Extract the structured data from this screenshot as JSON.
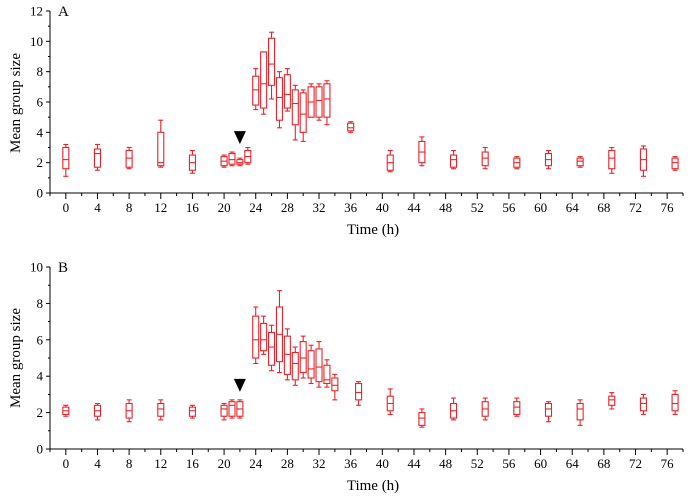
{
  "chart_data": [
    {
      "type": "box",
      "panel_label": "A",
      "xlabel": "Time (h)",
      "ylabel": "Mean group size",
      "xlim": [
        -2,
        78
      ],
      "ylim": [
        0,
        12
      ],
      "xticks": [
        0,
        4,
        8,
        12,
        16,
        20,
        24,
        28,
        32,
        36,
        40,
        44,
        48,
        52,
        56,
        60,
        64,
        68,
        72,
        76
      ],
      "yticks": [
        0,
        2,
        4,
        6,
        8,
        10,
        12
      ],
      "marker_time": 22,
      "color": "#e8242a",
      "boxes": [
        {
          "x": 0,
          "min": 1.1,
          "q1": 1.6,
          "median": 2.2,
          "q3": 3.0,
          "max": 3.2
        },
        {
          "x": 4,
          "min": 1.5,
          "q1": 1.7,
          "median": 2.6,
          "q3": 2.9,
          "max": 3.2
        },
        {
          "x": 8,
          "min": 1.6,
          "q1": 1.7,
          "median": 2.3,
          "q3": 2.8,
          "max": 3.0
        },
        {
          "x": 12,
          "min": 1.7,
          "q1": 1.8,
          "median": 2.0,
          "q3": 4.0,
          "max": 4.8
        },
        {
          "x": 16,
          "min": 1.3,
          "q1": 1.5,
          "median": 2.0,
          "q3": 2.5,
          "max": 2.8
        },
        {
          "x": 20,
          "min": 1.7,
          "q1": 1.8,
          "median": 2.1,
          "q3": 2.4,
          "max": 2.5
        },
        {
          "x": 21,
          "min": 1.8,
          "q1": 1.9,
          "median": 2.2,
          "q3": 2.6,
          "max": 2.7
        },
        {
          "x": 22,
          "min": 1.8,
          "q1": 1.9,
          "median": 2.0,
          "q3": 2.2,
          "max": 2.3
        },
        {
          "x": 23,
          "min": 1.9,
          "q1": 2.0,
          "median": 2.4,
          "q3": 2.8,
          "max": 3.0
        },
        {
          "x": 24,
          "min": 5.5,
          "q1": 5.8,
          "median": 6.8,
          "q3": 7.7,
          "max": 8.2
        },
        {
          "x": 25,
          "min": 5.2,
          "q1": 5.6,
          "median": 7.2,
          "q3": 9.3,
          "max": 9.3
        },
        {
          "x": 26,
          "min": 6.2,
          "q1": 7.1,
          "median": 8.5,
          "q3": 10.2,
          "max": 10.6
        },
        {
          "x": 27,
          "min": 4.3,
          "q1": 4.8,
          "median": 6.3,
          "q3": 7.6,
          "max": 8.0
        },
        {
          "x": 28,
          "min": 5.4,
          "q1": 5.6,
          "median": 6.5,
          "q3": 7.8,
          "max": 8.2
        },
        {
          "x": 29,
          "min": 3.5,
          "q1": 4.5,
          "median": 5.9,
          "q3": 6.8,
          "max": 7.1
        },
        {
          "x": 30,
          "min": 3.4,
          "q1": 4.0,
          "median": 5.2,
          "q3": 6.6,
          "max": 6.8
        },
        {
          "x": 31,
          "min": 5.0,
          "q1": 5.0,
          "median": 6.0,
          "q3": 7.0,
          "max": 7.2
        },
        {
          "x": 32,
          "min": 4.8,
          "q1": 5.0,
          "median": 6.1,
          "q3": 7.0,
          "max": 7.2
        },
        {
          "x": 33,
          "min": 4.5,
          "q1": 5.0,
          "median": 6.2,
          "q3": 7.2,
          "max": 7.4
        },
        {
          "x": 36,
          "min": 4.0,
          "q1": 4.1,
          "median": 4.3,
          "q3": 4.6,
          "max": 4.7
        },
        {
          "x": 41,
          "min": 1.4,
          "q1": 1.5,
          "median": 2.0,
          "q3": 2.5,
          "max": 2.8
        },
        {
          "x": 45,
          "min": 1.8,
          "q1": 2.0,
          "median": 2.7,
          "q3": 3.4,
          "max": 3.7
        },
        {
          "x": 49,
          "min": 1.6,
          "q1": 1.7,
          "median": 2.2,
          "q3": 2.5,
          "max": 2.8
        },
        {
          "x": 53,
          "min": 1.6,
          "q1": 1.8,
          "median": 2.3,
          "q3": 2.7,
          "max": 3.0
        },
        {
          "x": 57,
          "min": 1.6,
          "q1": 1.7,
          "median": 2.0,
          "q3": 2.3,
          "max": 2.4
        },
        {
          "x": 61,
          "min": 1.6,
          "q1": 1.8,
          "median": 2.2,
          "q3": 2.6,
          "max": 2.8
        },
        {
          "x": 65,
          "min": 1.7,
          "q1": 1.8,
          "median": 2.1,
          "q3": 2.3,
          "max": 2.4
        },
        {
          "x": 69,
          "min": 1.3,
          "q1": 1.6,
          "median": 2.3,
          "q3": 2.8,
          "max": 3.0
        },
        {
          "x": 73,
          "min": 1.1,
          "q1": 1.5,
          "median": 2.2,
          "q3": 2.9,
          "max": 3.1
        },
        {
          "x": 77,
          "min": 1.5,
          "q1": 1.6,
          "median": 2.0,
          "q3": 2.3,
          "max": 2.4
        }
      ]
    },
    {
      "type": "box",
      "panel_label": "B",
      "xlabel": "Time (h)",
      "ylabel": "Mean group size",
      "xlim": [
        -2,
        78
      ],
      "ylim": [
        0,
        10
      ],
      "xticks": [
        0,
        4,
        8,
        12,
        16,
        20,
        24,
        28,
        32,
        36,
        40,
        44,
        48,
        52,
        56,
        60,
        64,
        68,
        72,
        76
      ],
      "yticks": [
        0,
        2,
        4,
        6,
        8,
        10
      ],
      "marker_time": 22,
      "color": "#e8242a",
      "boxes": [
        {
          "x": 0,
          "min": 1.8,
          "q1": 1.9,
          "median": 2.1,
          "q3": 2.3,
          "max": 2.4
        },
        {
          "x": 4,
          "min": 1.6,
          "q1": 1.8,
          "median": 2.1,
          "q3": 2.4,
          "max": 2.5
        },
        {
          "x": 8,
          "min": 1.5,
          "q1": 1.7,
          "median": 2.1,
          "q3": 2.5,
          "max": 2.7
        },
        {
          "x": 12,
          "min": 1.6,
          "q1": 1.8,
          "median": 2.2,
          "q3": 2.5,
          "max": 2.7
        },
        {
          "x": 16,
          "min": 1.7,
          "q1": 1.8,
          "median": 2.1,
          "q3": 2.3,
          "max": 2.4
        },
        {
          "x": 20,
          "min": 1.6,
          "q1": 1.8,
          "median": 2.2,
          "q3": 2.4,
          "max": 2.5
        },
        {
          "x": 21,
          "min": 1.7,
          "q1": 1.8,
          "median": 2.4,
          "q3": 2.6,
          "max": 2.7
        },
        {
          "x": 22,
          "min": 1.7,
          "q1": 1.8,
          "median": 2.2,
          "q3": 2.6,
          "max": 2.7
        },
        {
          "x": 24,
          "min": 4.7,
          "q1": 5.0,
          "median": 6.0,
          "q3": 7.3,
          "max": 7.8
        },
        {
          "x": 25,
          "min": 5.2,
          "q1": 5.4,
          "median": 6.0,
          "q3": 6.9,
          "max": 7.3
        },
        {
          "x": 26,
          "min": 4.3,
          "q1": 4.6,
          "median": 5.6,
          "q3": 6.4,
          "max": 6.8
        },
        {
          "x": 27,
          "min": 4.2,
          "q1": 4.8,
          "median": 6.3,
          "q3": 7.8,
          "max": 8.7
        },
        {
          "x": 28,
          "min": 3.8,
          "q1": 4.1,
          "median": 5.2,
          "q3": 6.2,
          "max": 6.6
        },
        {
          "x": 29,
          "min": 3.5,
          "q1": 3.8,
          "median": 4.7,
          "q3": 5.3,
          "max": 5.6
        },
        {
          "x": 30,
          "min": 3.9,
          "q1": 4.2,
          "median": 5.0,
          "q3": 5.9,
          "max": 6.2
        },
        {
          "x": 31,
          "min": 3.6,
          "q1": 3.9,
          "median": 4.4,
          "q3": 5.4,
          "max": 5.7
        },
        {
          "x": 32,
          "min": 3.4,
          "q1": 3.7,
          "median": 4.5,
          "q3": 5.5,
          "max": 5.9
        },
        {
          "x": 33,
          "min": 3.4,
          "q1": 3.6,
          "median": 3.8,
          "q3": 4.6,
          "max": 4.9
        },
        {
          "x": 34,
          "min": 2.7,
          "q1": 3.2,
          "median": 3.5,
          "q3": 3.9,
          "max": 4.1
        },
        {
          "x": 37,
          "min": 2.4,
          "q1": 2.7,
          "median": 3.1,
          "q3": 3.6,
          "max": 3.7
        },
        {
          "x": 41,
          "min": 1.9,
          "q1": 2.1,
          "median": 2.5,
          "q3": 2.9,
          "max": 3.3
        },
        {
          "x": 45,
          "min": 1.2,
          "q1": 1.3,
          "median": 1.7,
          "q3": 2.0,
          "max": 2.2
        },
        {
          "x": 49,
          "min": 1.6,
          "q1": 1.7,
          "median": 2.1,
          "q3": 2.5,
          "max": 2.8
        },
        {
          "x": 53,
          "min": 1.6,
          "q1": 1.8,
          "median": 2.2,
          "q3": 2.6,
          "max": 2.8
        },
        {
          "x": 57,
          "min": 1.8,
          "q1": 1.9,
          "median": 2.3,
          "q3": 2.6,
          "max": 2.8
        },
        {
          "x": 61,
          "min": 1.5,
          "q1": 1.8,
          "median": 2.2,
          "q3": 2.5,
          "max": 2.6
        },
        {
          "x": 65,
          "min": 1.3,
          "q1": 1.6,
          "median": 2.2,
          "q3": 2.5,
          "max": 2.7
        },
        {
          "x": 69,
          "min": 2.2,
          "q1": 2.4,
          "median": 2.7,
          "q3": 2.9,
          "max": 3.1
        },
        {
          "x": 73,
          "min": 1.9,
          "q1": 2.1,
          "median": 2.5,
          "q3": 2.8,
          "max": 3.0
        },
        {
          "x": 77,
          "min": 1.9,
          "q1": 2.1,
          "median": 2.5,
          "q3": 3.0,
          "max": 3.2
        }
      ]
    }
  ]
}
